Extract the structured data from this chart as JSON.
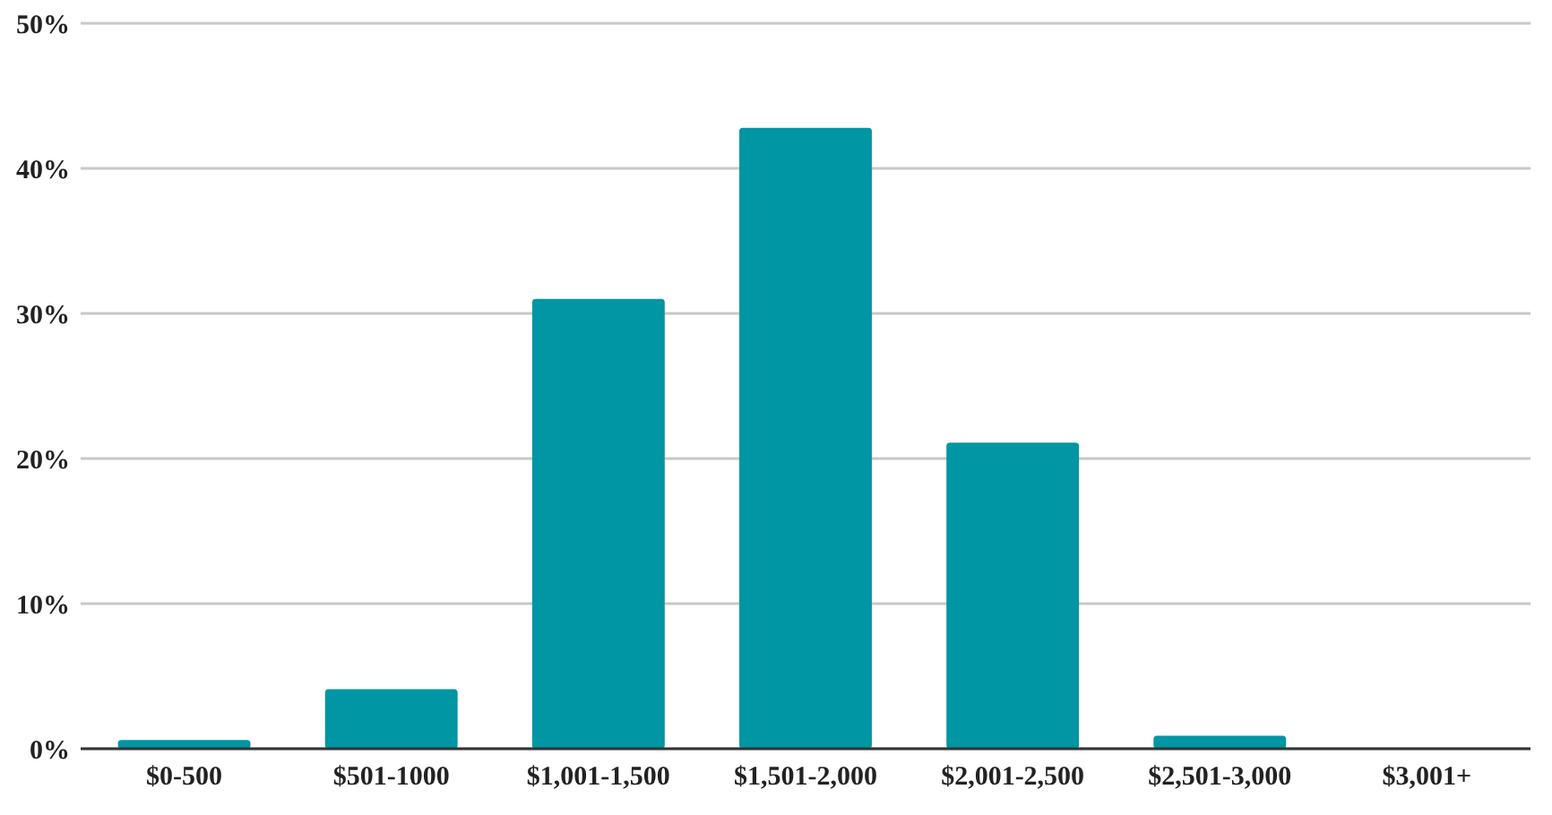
{
  "chart_data": {
    "type": "bar",
    "categories": [
      "$0-500",
      "$501-1000",
      "$1,001-1,500",
      "$1,501-2,000",
      "$2,001-2,500",
      "$2,501-3,000",
      "$3,001+"
    ],
    "values": [
      0.6,
      4.1,
      31.0,
      42.8,
      21.1,
      0.9,
      0
    ],
    "color": "#0096a4",
    "ylim": [
      0,
      50
    ],
    "yticks": [
      {
        "value": 0,
        "label": "0%"
      },
      {
        "value": 10,
        "label": "10%"
      },
      {
        "value": 20,
        "label": "20%"
      },
      {
        "value": 30,
        "label": "30%"
      },
      {
        "value": 40,
        "label": "40%"
      },
      {
        "value": 50,
        "label": "50%"
      }
    ],
    "grid": "y"
  }
}
